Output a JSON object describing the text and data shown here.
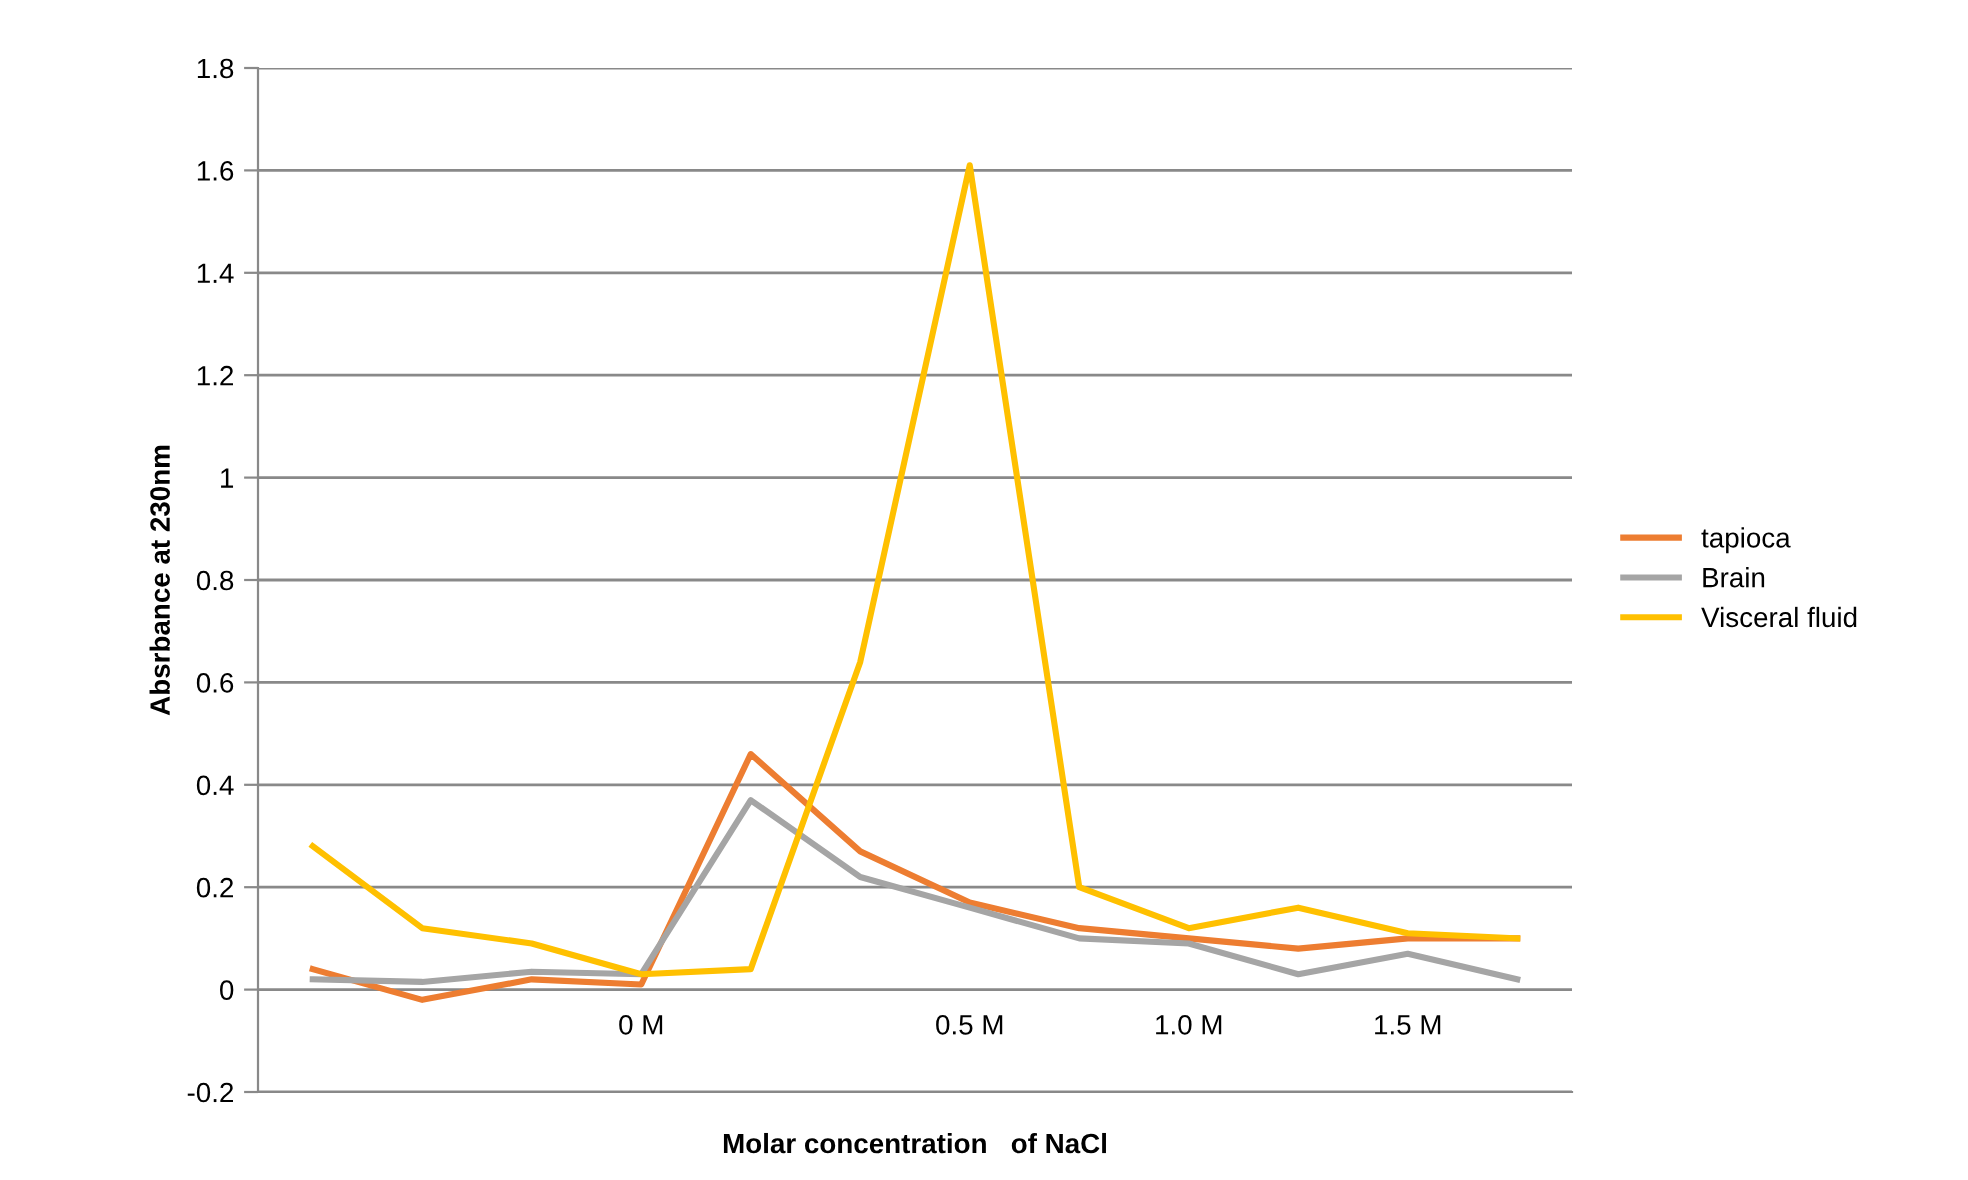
{
  "chart_data": {
    "type": "line",
    "xlabel": "Molar concentration   of NaCl",
    "ylabel": "Absrbance at 230nm",
    "categories": [
      null,
      null,
      null,
      "0 M",
      null,
      null,
      "0.5 M",
      null,
      "1.0 M",
      null,
      "1.5 M",
      null
    ],
    "series": [
      {
        "name": "tapioca",
        "color": "#ed7d31",
        "values": [
          0.04,
          -0.02,
          0.02,
          0.01,
          0.46,
          0.27,
          0.17,
          0.12,
          0.1,
          0.08,
          0.1,
          0.1
        ]
      },
      {
        "name": "Brain",
        "color": "#a5a5a5",
        "values": [
          0.02,
          0.015,
          0.035,
          0.03,
          0.37,
          0.22,
          0.16,
          0.1,
          0.09,
          0.03,
          0.07,
          0.02
        ]
      },
      {
        "name": "Visceral fluid",
        "color": "#ffc000",
        "values": [
          0.28,
          0.12,
          0.09,
          0.03,
          0.04,
          0.64,
          1.61,
          0.2,
          0.12,
          0.16,
          0.11,
          0.1
        ]
      }
    ],
    "ylim": [
      -0.2,
      1.8
    ],
    "yticks": [
      -0.2,
      0,
      0.2,
      0.4,
      0.6,
      0.8,
      1,
      1.2,
      1.4,
      1.6,
      1.8
    ],
    "grid": "y",
    "legend": "right",
    "marker": "none",
    "line_style": "solid"
  }
}
